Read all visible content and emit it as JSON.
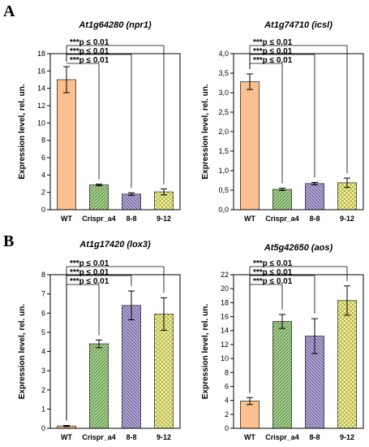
{
  "panel_letters": [
    "A",
    "B"
  ],
  "colors": {
    "WT": "#fac08f",
    "Crispr_a4": "#a9d18e",
    "8-8": "#b4a7d6",
    "9-12": "#f2f29b",
    "bar_edge": "#333333"
  },
  "chart_data": [
    {
      "type": "bar",
      "title": "At1g64280 (npr1)",
      "ylabel": "Expression level, rel. un.",
      "categories": [
        "WT",
        "Crispr_a4",
        "8-8",
        "9-12"
      ],
      "values": [
        15.0,
        2.85,
        1.8,
        2.05
      ],
      "errors": [
        1.5,
        0.1,
        0.15,
        0.35
      ],
      "ylim": [
        0,
        18
      ],
      "yticks": [
        "0",
        "2",
        "4",
        "6",
        "8",
        "10",
        "12",
        "14",
        "16",
        "18"
      ],
      "annotations": [
        "***p ≤ 0.01",
        "***p ≤ 0.01",
        "***p ≤ 0.01"
      ]
    },
    {
      "type": "bar",
      "title": "At1g74710 (icsl)",
      "ylabel": "Expression level, rel. un.",
      "categories": [
        "WT",
        "Crispr_a4",
        "8-8",
        "9-12"
      ],
      "values": [
        3.28,
        0.52,
        0.67,
        0.69
      ],
      "errors": [
        0.2,
        0.03,
        0.03,
        0.12
      ],
      "ylim": [
        0,
        4.0
      ],
      "yticks": [
        "0,0",
        "0,5",
        "1,0",
        "1,5",
        "2,0",
        "2,5",
        "3,0",
        "3,5",
        "4,0"
      ],
      "annotations": [
        "***p ≤ 0.01",
        "***p ≤ 0.01",
        "***p ≤ 0.01"
      ]
    },
    {
      "type": "bar",
      "title": "At1g17420 (lox3)",
      "ylabel": "Expression level, rel. un.",
      "categories": [
        "WT",
        "Crispr_a4",
        "8-8",
        "9-12"
      ],
      "values": [
        0.12,
        4.4,
        6.4,
        5.95
      ],
      "errors": [
        0.03,
        0.2,
        0.75,
        0.85
      ],
      "ylim": [
        0,
        8
      ],
      "yticks": [
        "0",
        "1",
        "2",
        "3",
        "4",
        "5",
        "6",
        "7",
        "8"
      ],
      "annotations": [
        "***p ≤ 0.01",
        "***p ≤ 0.01",
        "***p ≤ 0.01"
      ]
    },
    {
      "type": "bar",
      "title": "At5g42650 (aos)",
      "ylabel": "Expression level, rel. un.",
      "categories": [
        "WT",
        "Crispr_a4",
        "8-8",
        "9-12"
      ],
      "values": [
        3.9,
        15.3,
        13.2,
        18.3
      ],
      "errors": [
        0.5,
        1.0,
        2.5,
        2.1
      ],
      "ylim": [
        0,
        22
      ],
      "yticks": [
        "0",
        "2",
        "4",
        "6",
        "8",
        "10",
        "12",
        "14",
        "16",
        "18",
        "20",
        "22"
      ],
      "annotations": [
        "***p ≤ 0.01",
        "***p ≤ 0.01",
        "***p ≤ 0.01"
      ]
    }
  ]
}
